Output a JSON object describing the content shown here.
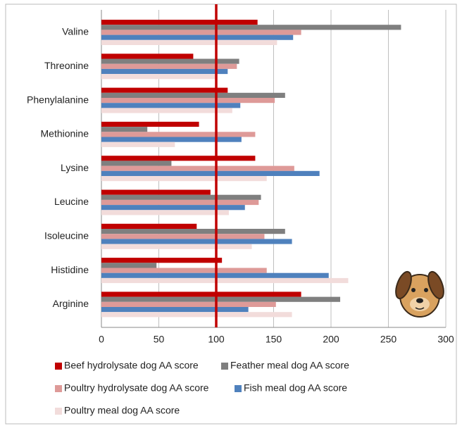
{
  "chart_data": {
    "type": "bar",
    "orientation": "horizontal",
    "categories": [
      "Valine",
      "Threonine",
      "Phenylalanine",
      "Methionine",
      "Lysine",
      "Leucine",
      "Isoleucine",
      "Histidine",
      "Arginine"
    ],
    "series": [
      {
        "name": "Beef hydrolysate dog AA score",
        "color": "#c00000",
        "values": [
          136,
          80,
          110,
          85,
          134,
          95,
          83,
          105,
          174
        ]
      },
      {
        "name": "Feather meal dog AA score",
        "color": "#7f7f7f",
        "values": [
          261,
          120,
          160,
          40,
          61,
          139,
          160,
          48,
          208
        ]
      },
      {
        "name": "Poultry hydrolysate dog AA score",
        "color": "#de9a98",
        "values": [
          174,
          118,
          151,
          134,
          168,
          137,
          142,
          144,
          152
        ]
      },
      {
        "name": "Fish meal dog AA score",
        "color": "#4f81bd",
        "values": [
          167,
          110,
          121,
          122,
          190,
          125,
          166,
          198,
          128
        ]
      },
      {
        "name": "Poultry meal dog AA score",
        "color": "#f2dcdb",
        "values": [
          153,
          99,
          114,
          64,
          144,
          111,
          131,
          215,
          166
        ]
      }
    ],
    "xlim": [
      0,
      300
    ],
    "xticks": [
      0,
      50,
      100,
      150,
      200,
      250,
      300
    ],
    "grid": true,
    "reference_line": {
      "value": 100,
      "color": "#c00000"
    }
  }
}
